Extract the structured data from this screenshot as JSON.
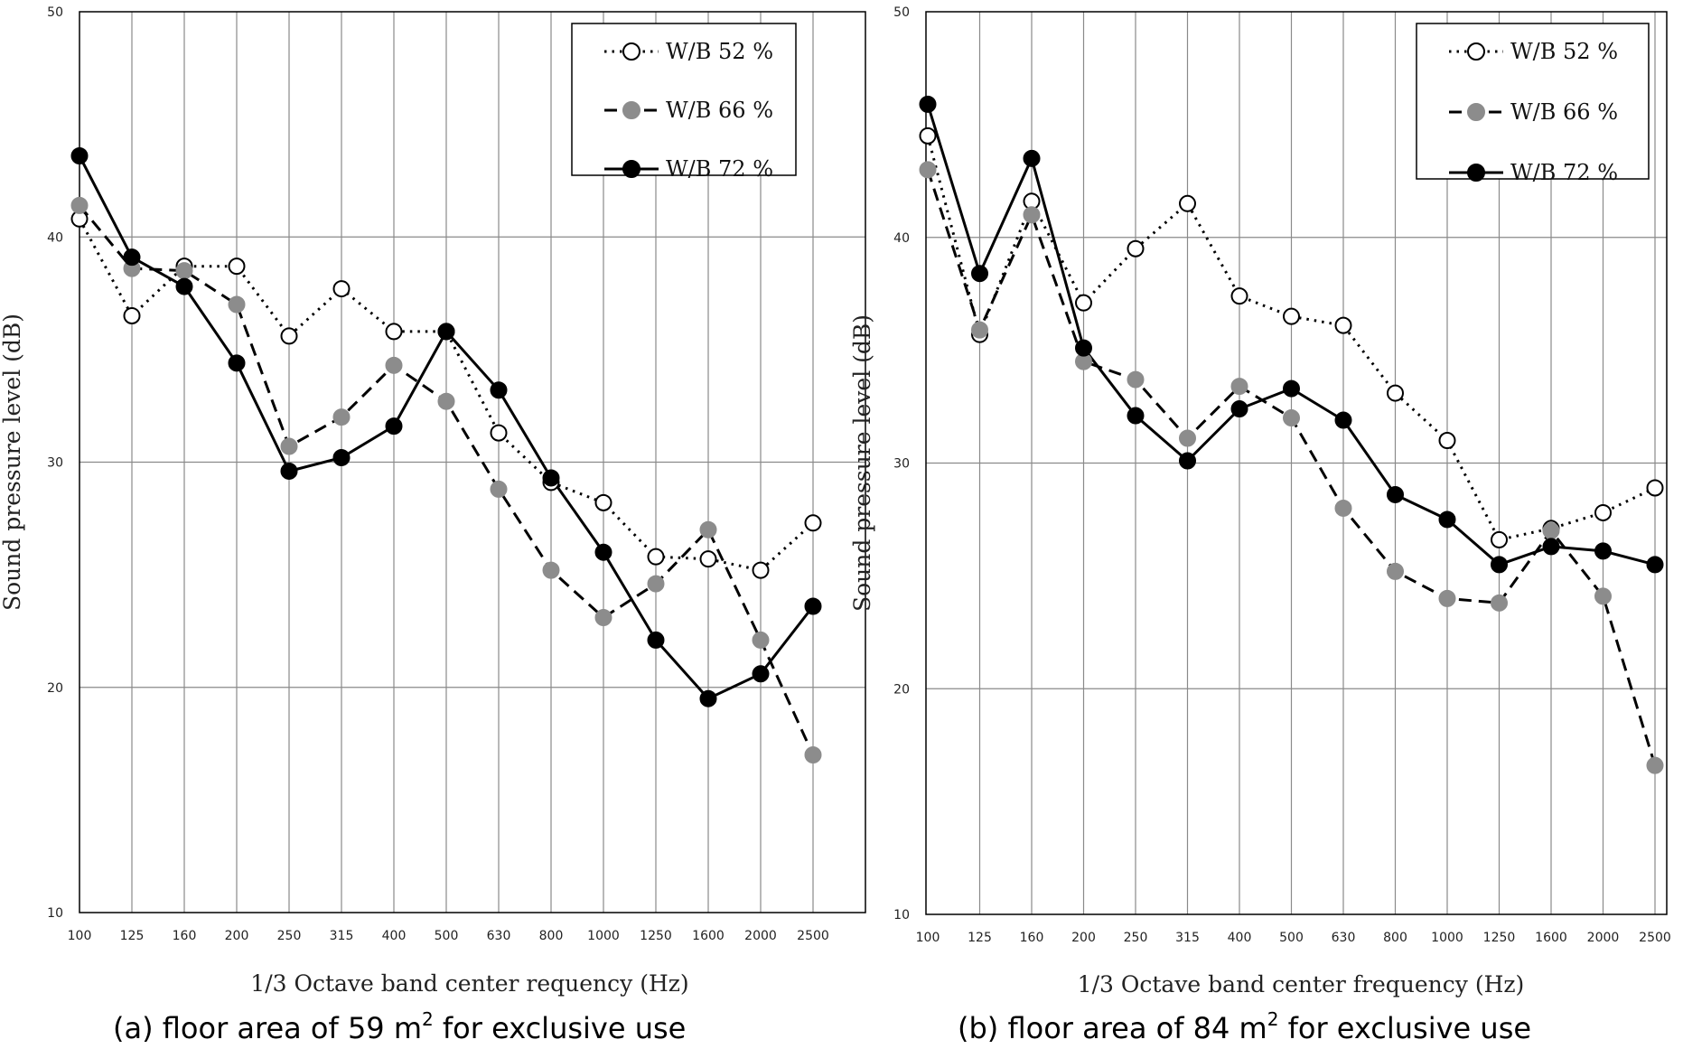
{
  "chart_data": [
    {
      "type": "line",
      "caption_prefix": "(a) floor area of 59 m",
      "caption_sup": "2",
      "caption_suffix": " for exclusive use",
      "xlabel": "1/3 Octave band center requency (Hz)",
      "ylabel": "Sound pressure level (dB)",
      "ylim": [
        10,
        50
      ],
      "yticks": [
        10,
        20,
        30,
        40,
        50
      ],
      "grid": true,
      "legend_position": "top-right",
      "categories": [
        "100",
        "125",
        "160",
        "200",
        "250",
        "315",
        "400",
        "500",
        "630",
        "800",
        "1000",
        "1250",
        "1600",
        "2000",
        "2500"
      ],
      "series": [
        {
          "name": "W/B 52 %",
          "style": "dotted-open",
          "values": [
            40.8,
            36.5,
            38.7,
            38.7,
            35.6,
            37.7,
            35.8,
            35.8,
            31.3,
            29.1,
            28.2,
            25.8,
            25.7,
            25.2,
            27.3
          ]
        },
        {
          "name": "W/B 66 %",
          "style": "dashed-gray",
          "values": [
            41.4,
            38.6,
            38.5,
            37.0,
            30.7,
            32.0,
            34.3,
            32.7,
            28.8,
            25.2,
            23.1,
            24.6,
            27.0,
            22.1,
            17.0
          ]
        },
        {
          "name": "W/B 72 %",
          "style": "solid-black",
          "values": [
            43.6,
            39.1,
            37.8,
            34.4,
            29.6,
            30.2,
            31.6,
            35.8,
            33.2,
            29.3,
            26.0,
            22.1,
            19.5,
            20.6,
            23.6
          ]
        }
      ]
    },
    {
      "type": "line",
      "caption_prefix": "(b) floor area of 84 m",
      "caption_sup": "2",
      "caption_suffix": " for exclusive use",
      "xlabel": "1/3 Octave band center frequency (Hz)",
      "ylabel": "Sound pressure level (dB)",
      "ylim": [
        10,
        50
      ],
      "yticks": [
        10,
        20,
        30,
        40,
        50
      ],
      "grid": true,
      "legend_position": "top-right",
      "categories": [
        "100",
        "125",
        "160",
        "200",
        "250",
        "315",
        "400",
        "500",
        "630",
        "800",
        "1000",
        "1250",
        "1600",
        "2000",
        "2500"
      ],
      "series": [
        {
          "name": "W/B 52 %",
          "style": "dotted-open",
          "values": [
            44.5,
            35.7,
            41.6,
            37.1,
            39.5,
            41.5,
            37.4,
            36.5,
            36.1,
            33.1,
            31.0,
            26.6,
            27.1,
            27.8,
            28.9
          ]
        },
        {
          "name": "W/B 66 %",
          "style": "dashed-gray",
          "values": [
            43.0,
            35.9,
            41.0,
            34.5,
            33.7,
            31.1,
            33.4,
            32.0,
            28.0,
            25.2,
            24.0,
            23.8,
            27.0,
            24.1,
            16.6
          ]
        },
        {
          "name": "W/B 72 %",
          "style": "solid-black",
          "values": [
            45.9,
            38.4,
            43.5,
            35.1,
            32.1,
            30.1,
            32.4,
            33.3,
            31.9,
            28.6,
            27.5,
            25.5,
            26.3,
            26.1,
            25.5
          ]
        }
      ]
    }
  ]
}
